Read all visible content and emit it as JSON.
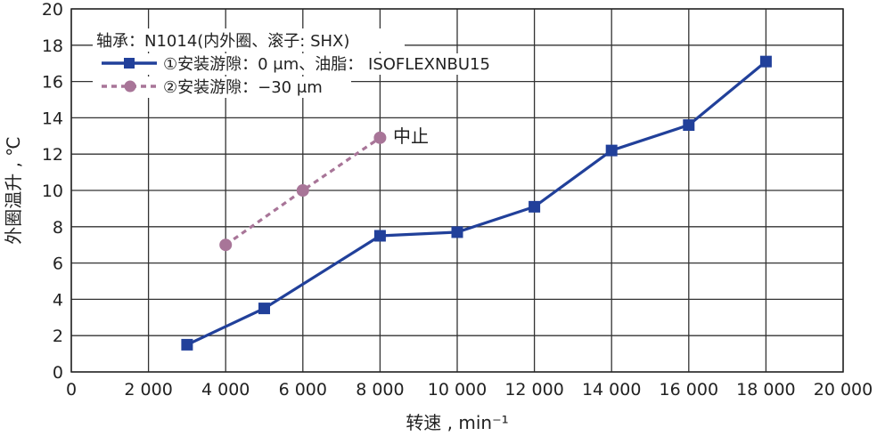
{
  "chart_data": {
    "type": "line",
    "title": "",
    "xlabel": "转速 , min⁻¹",
    "ylabel": "外圈温升 , ℃",
    "xlim": [
      0,
      20000
    ],
    "ylim": [
      0,
      20
    ],
    "xticks": [
      0,
      2000,
      4000,
      6000,
      8000,
      10000,
      12000,
      14000,
      16000,
      18000,
      20000
    ],
    "xtick_labels": [
      "0",
      "2 000",
      "4 000",
      "6 000",
      "8 000",
      "10 000",
      "12 000",
      "14 000",
      "16 000",
      "18 000",
      "20 000"
    ],
    "yticks": [
      0,
      2,
      4,
      6,
      8,
      10,
      12,
      14,
      16,
      18,
      20
    ],
    "ytick_labels": [
      "0",
      "2",
      "4",
      "6",
      "8",
      "10",
      "12",
      "14",
      "16",
      "18",
      "20"
    ],
    "grid": true,
    "legend_title": "轴承：N1014(内外圈、滚子: SHX)",
    "legend_position": "top-left",
    "series": [
      {
        "name": "①安装游隙：0 μm、油脂： ISOFLEXNBU15",
        "color": "#21409a",
        "marker": "square",
        "linestyle": "solid",
        "x": [
          3000,
          5000,
          8000,
          10000,
          12000,
          14000,
          16000,
          18000
        ],
        "y": [
          1.5,
          3.5,
          7.5,
          7.7,
          9.1,
          12.2,
          13.6,
          17.1
        ]
      },
      {
        "name": "②安装游隙：−30 μm",
        "color": "#a87598",
        "marker": "circle",
        "linestyle": "dotted",
        "x": [
          4000,
          6000,
          8000
        ],
        "y": [
          7.0,
          10.0,
          12.9
        ]
      }
    ],
    "annotations": [
      {
        "text": "中止",
        "x": 8000,
        "y": 12.9
      }
    ]
  }
}
